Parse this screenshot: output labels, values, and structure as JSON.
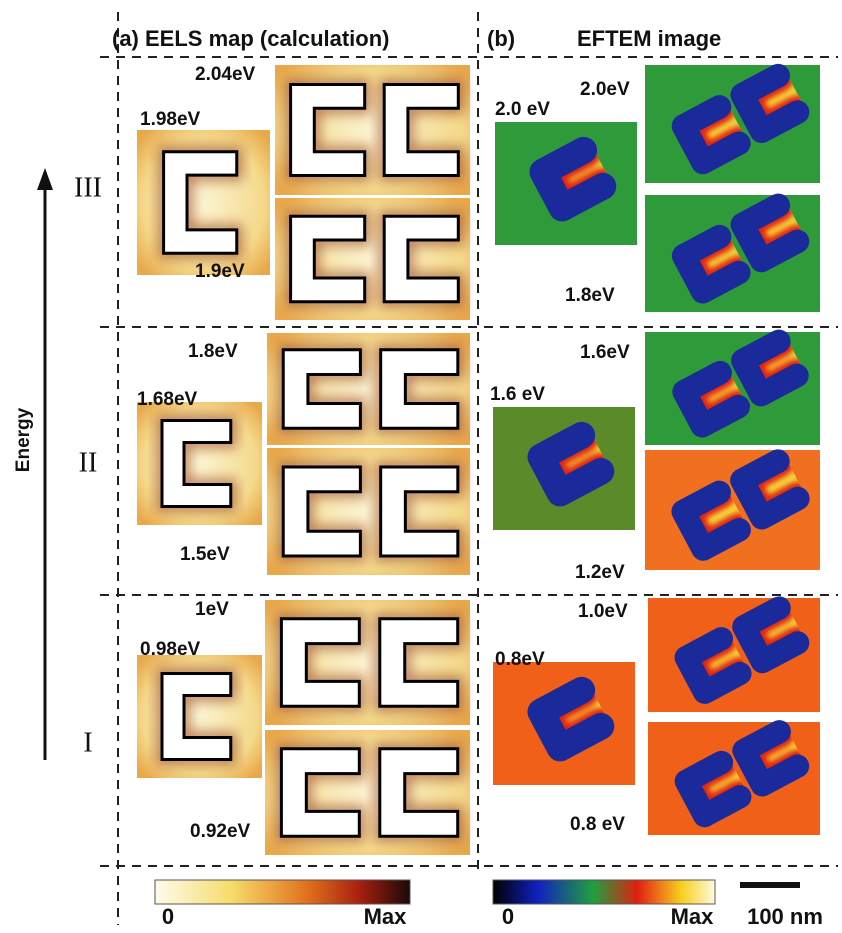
{
  "header": {
    "panel_a": "(a) EELS map (calculation)",
    "panel_b_letter": "(b)",
    "panel_b_title": "EFTEM image"
  },
  "axis_label": "Energy",
  "rows": [
    {
      "regime": "III",
      "calc": {
        "single": "1.98eV",
        "pair_top": "2.04eV",
        "pair_bottom": "1.9eV"
      },
      "eftem": {
        "single": "2.0 eV",
        "pair_top": "2.0eV",
        "pair_bottom": "1.8eV"
      }
    },
    {
      "regime": "II",
      "calc": {
        "single": "1.68eV",
        "pair_top": "1.8eV",
        "pair_bottom": "1.5eV"
      },
      "eftem": {
        "single": "1.6 eV",
        "pair_top": "1.6eV",
        "pair_bottom": "1.2eV"
      }
    },
    {
      "regime": "I",
      "calc": {
        "single": "0.98eV",
        "pair_top": "1eV",
        "pair_bottom": "0.92eV"
      },
      "eftem": {
        "single": "0.8eV",
        "pair_top": "1.0eV",
        "pair_bottom": "0.8 eV"
      }
    }
  ],
  "colorbars": [
    {
      "min": "0",
      "max": "Max"
    },
    {
      "min": "0",
      "max": "Max"
    }
  ],
  "scale_bar": "100 nm"
}
